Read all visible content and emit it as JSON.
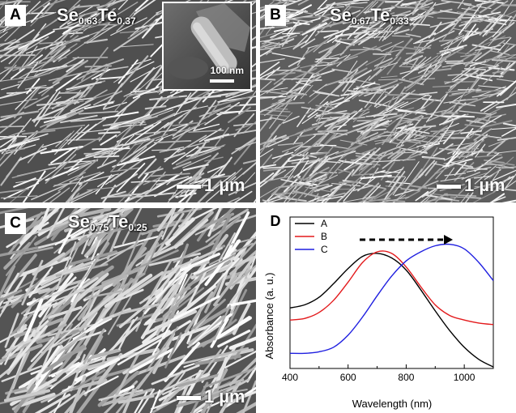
{
  "panels": {
    "a": {
      "letter": "A",
      "formula": {
        "el1": "Se",
        "sub1": "0.63",
        "el2": "Te",
        "sub2": "0.37"
      },
      "scale_label": "1 µm",
      "inset": {
        "scale_label": "100 nm"
      }
    },
    "b": {
      "letter": "B",
      "formula": {
        "el1": "Se",
        "sub1": "0.67",
        "el2": "Te",
        "sub2": "0.33"
      },
      "scale_label": "1 µm"
    },
    "c": {
      "letter": "C",
      "formula": {
        "el1": "Se",
        "sub1": "0.75",
        "el2": "Te",
        "sub2": "0.25"
      },
      "scale_label": "1 µm"
    },
    "d": {
      "letter": "D"
    }
  },
  "chart_data": {
    "type": "line",
    "xlabel": "Wavelength (nm)",
    "ylabel": "Absorbance (a. u.)",
    "xlim": [
      400,
      1100
    ],
    "ylim": [
      0,
      1
    ],
    "xticks": [
      400,
      600,
      800,
      1000
    ],
    "yticks_shown": false,
    "legend_position": "top-left",
    "annotation": "dashed arrow pointing right (red-shift)",
    "series": [
      {
        "name": "A",
        "color": "#000000",
        "x": [
          400,
          450,
          500,
          550,
          600,
          650,
          700,
          750,
          800,
          850,
          900,
          950,
          1000,
          1050,
          1100
        ],
        "y": [
          0.4,
          0.42,
          0.47,
          0.56,
          0.66,
          0.74,
          0.76,
          0.73,
          0.65,
          0.52,
          0.38,
          0.25,
          0.14,
          0.06,
          0.01
        ]
      },
      {
        "name": "B",
        "color": "#e31a1c",
        "x": [
          400,
          450,
          500,
          550,
          600,
          650,
          700,
          750,
          800,
          850,
          900,
          950,
          1000,
          1050,
          1100
        ],
        "y": [
          0.32,
          0.33,
          0.37,
          0.45,
          0.57,
          0.7,
          0.77,
          0.76,
          0.67,
          0.54,
          0.42,
          0.35,
          0.32,
          0.3,
          0.29
        ]
      },
      {
        "name": "C",
        "color": "#1f1fe0",
        "x": [
          400,
          450,
          500,
          550,
          600,
          650,
          700,
          750,
          800,
          850,
          900,
          950,
          1000,
          1050,
          1100
        ],
        "y": [
          0.1,
          0.1,
          0.11,
          0.14,
          0.22,
          0.34,
          0.48,
          0.61,
          0.71,
          0.77,
          0.81,
          0.82,
          0.79,
          0.7,
          0.58
        ]
      }
    ]
  }
}
